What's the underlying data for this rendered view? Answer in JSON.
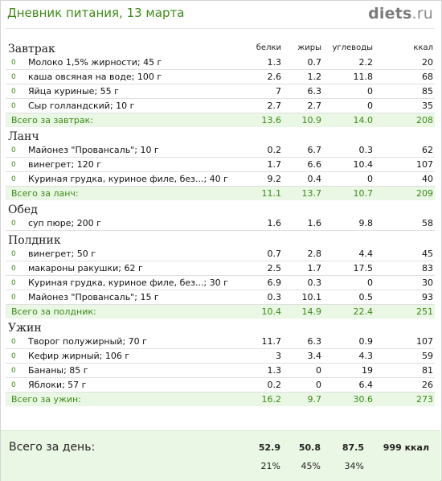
{
  "header": {
    "title": "Дневник питания, 13 марта",
    "logo_main": "diets",
    "logo_suffix": ".ru"
  },
  "columns": {
    "protein": "белки",
    "fat": "жиры",
    "carbs": "углеводы",
    "kcal": "ккал"
  },
  "meals": [
    {
      "name": "Завтрак",
      "items": [
        {
          "idx": "0",
          "name": "Молоко 1,5% жирности; 45 г",
          "p": "1.3",
          "f": "0.7",
          "c": "2.2",
          "k": "20"
        },
        {
          "idx": "0",
          "name": "каша овсяная на воде; 100 г",
          "p": "2.6",
          "f": "1.2",
          "c": "11.8",
          "k": "68"
        },
        {
          "idx": "0",
          "name": "Яйца куриные; 55 г",
          "p": "7",
          "f": "6.3",
          "c": "0",
          "k": "85"
        },
        {
          "idx": "0",
          "name": "Сыр голландский; 10 г",
          "p": "2.7",
          "f": "2.7",
          "c": "0",
          "k": "35"
        }
      ],
      "total": {
        "label": "Всего за завтрак:",
        "p": "13.6",
        "f": "10.9",
        "c": "14.0",
        "k": "208"
      }
    },
    {
      "name": "Ланч",
      "items": [
        {
          "idx": "0",
          "name": "Майонез \"Провансаль\"; 10 г",
          "p": "0.2",
          "f": "6.7",
          "c": "0.3",
          "k": "62"
        },
        {
          "idx": "0",
          "name": "винегрет; 120 г",
          "p": "1.7",
          "f": "6.6",
          "c": "10.4",
          "k": "107"
        },
        {
          "idx": "0",
          "name": "Куриная грудка, куриное филе, без...; 40 г",
          "p": "9.2",
          "f": "0.4",
          "c": "0",
          "k": "40"
        }
      ],
      "total": {
        "label": "Всего за ланч:",
        "p": "11.1",
        "f": "13.7",
        "c": "10.7",
        "k": "209"
      }
    },
    {
      "name": "Обед",
      "items": [
        {
          "idx": "0",
          "name": "суп пюре; 200 г",
          "p": "1.6",
          "f": "1.6",
          "c": "9.8",
          "k": "58"
        }
      ],
      "total": null
    },
    {
      "name": "Полдник",
      "items": [
        {
          "idx": "0",
          "name": "винегрет; 50 г",
          "p": "0.7",
          "f": "2.8",
          "c": "4.4",
          "k": "45"
        },
        {
          "idx": "0",
          "name": "макароны ракушки; 62 г",
          "p": "2.5",
          "f": "1.7",
          "c": "17.5",
          "k": "83"
        },
        {
          "idx": "0",
          "name": "Куриная грудка, куриное филе, без...; 30 г",
          "p": "6.9",
          "f": "0.3",
          "c": "0",
          "k": "30"
        },
        {
          "idx": "0",
          "name": "Майонез \"Провансаль\"; 15 г",
          "p": "0.3",
          "f": "10.1",
          "c": "0.5",
          "k": "93"
        }
      ],
      "total": {
        "label": "Всего за полдник:",
        "p": "10.4",
        "f": "14.9",
        "c": "22.4",
        "k": "251"
      }
    },
    {
      "name": "Ужин",
      "items": [
        {
          "idx": "0",
          "name": "Творог полужирный; 70 г",
          "p": "11.7",
          "f": "6.3",
          "c": "0.9",
          "k": "107"
        },
        {
          "idx": "0",
          "name": "Кефир жирный; 106 г",
          "p": "3",
          "f": "3.4",
          "c": "4.3",
          "k": "59"
        },
        {
          "idx": "0",
          "name": "Бананы; 85 г",
          "p": "1.3",
          "f": "0",
          "c": "19",
          "k": "81"
        },
        {
          "idx": "0",
          "name": "Яблоки; 57 г",
          "p": "0.2",
          "f": "0",
          "c": "6.4",
          "k": "26"
        }
      ],
      "total": {
        "label": "Всего за ужин:",
        "p": "16.2",
        "f": "9.7",
        "c": "30.6",
        "k": "273"
      }
    }
  ],
  "day_total": {
    "label": "Всего за день:",
    "p": "52.9",
    "f": "50.8",
    "c": "87.5",
    "k": "999 ккал",
    "p_pct": "21%",
    "f_pct": "45%",
    "c_pct": "34%"
  },
  "colors": {
    "accent_green": "#3d8a17",
    "total_bg": "#e9f7e4",
    "logo_gray": "#7a7a7a"
  }
}
